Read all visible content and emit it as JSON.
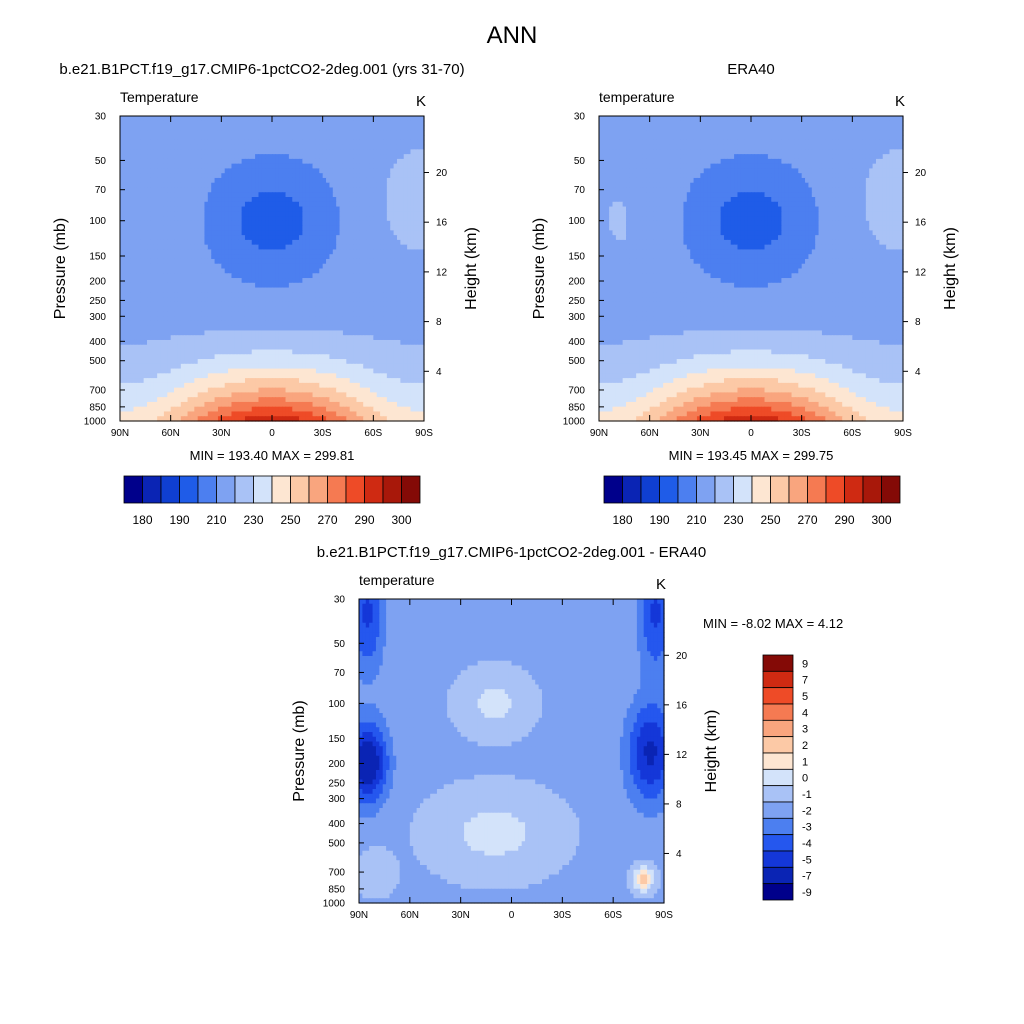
{
  "figure_title": "ANN",
  "colors": {
    "abs_scale": [
      "#00008b",
      "#0a24b4",
      "#0f3fd2",
      "#1f5ce8",
      "#4c7ff0",
      "#7ea2f2",
      "#a9c2f6",
      "#d3e3fa",
      "#fde6d2",
      "#fcc9a6",
      "#f9a57e",
      "#f57a52",
      "#ee4b27",
      "#cf2a12",
      "#a8180a",
      "#840a06"
    ],
    "diff_scale": [
      "#00008b",
      "#0a24b4",
      "#1437d8",
      "#2557ee",
      "#4c7ff0",
      "#7ea2f2",
      "#a9c2f6",
      "#d3e3fa",
      "#fde6d2",
      "#fcc9a6",
      "#f9a57e",
      "#f57a52",
      "#ee4b27",
      "#cf2a12",
      "#840a06"
    ]
  },
  "chart_data": [
    {
      "type": "heatmap",
      "id": "model",
      "title": "b.e21.B1PCT.f19_g17.CMIP6-1pctCO2-2deg.001 (yrs 31-70)",
      "left_label": "Temperature",
      "units": "K",
      "ylabel": "Pressure (mb)",
      "y2label": "Height (km)",
      "x_ticks": [
        "90N",
        "60N",
        "30N",
        "0",
        "30S",
        "60S",
        "90S"
      ],
      "y_ticks": [
        30,
        50,
        70,
        100,
        150,
        200,
        250,
        300,
        400,
        500,
        700,
        850,
        1000
      ],
      "y2_ticks": [
        20,
        16,
        12,
        8,
        4
      ],
      "ylim": [
        30,
        1000
      ],
      "stats": "MIN = 193.40  MAX = 299.81",
      "min": 193.4,
      "max": 299.81,
      "colorbar_labels": [
        "180",
        "190",
        "210",
        "230",
        "250",
        "270",
        "290",
        "300"
      ]
    },
    {
      "type": "heatmap",
      "id": "obs",
      "title": "ERA40",
      "left_label": "temperature",
      "units": "K",
      "ylabel": "Pressure (mb)",
      "y2label": "Height (km)",
      "x_ticks": [
        "90N",
        "60N",
        "30N",
        "0",
        "30S",
        "60S",
        "90S"
      ],
      "y_ticks": [
        30,
        50,
        70,
        100,
        150,
        200,
        250,
        300,
        400,
        500,
        700,
        850,
        1000
      ],
      "y2_ticks": [
        20,
        16,
        12,
        8,
        4
      ],
      "ylim": [
        30,
        1000
      ],
      "stats": "MIN = 193.45  MAX = 299.75",
      "min": 193.45,
      "max": 299.75,
      "colorbar_labels": [
        "180",
        "190",
        "210",
        "230",
        "250",
        "270",
        "290",
        "300"
      ]
    },
    {
      "type": "heatmap",
      "id": "diff",
      "title": "b.e21.B1PCT.f19_g17.CMIP6-1pctCO2-2deg.001 - ERA40",
      "left_label": "temperature",
      "units": "K",
      "ylabel": "Pressure (mb)",
      "y2label": "Height (km)",
      "x_ticks": [
        "90N",
        "60N",
        "30N",
        "0",
        "30S",
        "60S",
        "90S"
      ],
      "y_ticks": [
        30,
        50,
        70,
        100,
        150,
        200,
        250,
        300,
        400,
        500,
        700,
        850,
        1000
      ],
      "y2_ticks": [
        20,
        16,
        12,
        8,
        4
      ],
      "ylim": [
        30,
        1000
      ],
      "stats": "MIN =  -8.02  MAX =   4.12",
      "min": -8.02,
      "max": 4.12,
      "colorbar_labels": [
        "9",
        "7",
        "5",
        "4",
        "3",
        "2",
        "1",
        "0",
        "-1",
        "-2",
        "-3",
        "-4",
        "-5",
        "-7",
        "-9"
      ]
    }
  ]
}
